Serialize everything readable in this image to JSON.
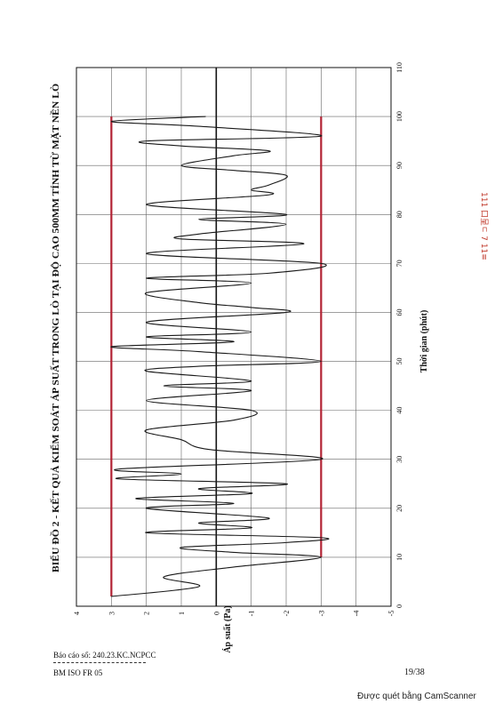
{
  "chart_data": {
    "type": "line",
    "title": "BIỂU ĐỒ 2 - KẾT QUẢ KIỂM SOÁT ÁP SUẤT TRONG  LÒ TẠI ĐỘ CAO 500MM TÍNH TỪ MẶT NỀN LÒ",
    "xlabel": "Thời gian (phút)",
    "ylabel": "Áp suất (Pa)",
    "xlim": [
      0,
      110
    ],
    "ylim": [
      -5,
      4
    ],
    "x_ticks": [
      "0",
      "10",
      "20",
      "30",
      "40",
      "50",
      "60",
      "70",
      "80",
      "90",
      "100",
      "110"
    ],
    "y_ticks": [
      "4",
      "3",
      "2",
      "1",
      "0",
      "-1",
      "-2",
      "-3",
      "-4",
      "-5"
    ],
    "grid": true,
    "limits": [
      {
        "y": 3,
        "x_start": 2,
        "x_end": 100,
        "color": "#b22234"
      },
      {
        "y": -3,
        "x_start": 10,
        "x_end": 100,
        "color": "#b22234"
      }
    ],
    "series": [
      {
        "color": "#1a1a1a",
        "x": [
          2,
          4,
          6,
          8,
          10,
          11,
          12,
          13,
          14,
          15,
          16,
          17,
          18,
          20,
          21,
          22,
          23,
          24,
          25,
          26,
          27,
          28,
          30,
          32,
          34,
          36,
          38,
          40,
          42,
          44,
          45,
          46,
          48,
          49,
          50,
          52,
          53,
          54,
          55,
          56,
          58,
          60,
          61,
          62,
          64,
          66,
          67,
          68,
          70,
          72,
          74,
          75,
          76,
          78,
          79,
          80,
          82,
          84,
          85,
          86,
          88,
          89,
          90,
          92,
          93,
          94,
          95,
          96,
          98,
          99,
          100
        ],
        "y": [
          3,
          0.5,
          1.5,
          -0.5,
          -3,
          -0.5,
          1,
          -2,
          -3,
          2,
          -1,
          0.5,
          -1.5,
          2,
          -0.5,
          2.3,
          -1,
          0.5,
          -2,
          2.8,
          1,
          2.8,
          -3,
          0.2,
          1,
          2,
          -0.5,
          -1,
          2,
          -1,
          1.5,
          -1,
          2,
          0.5,
          -3,
          0.5,
          3,
          -0.5,
          2,
          -1,
          2,
          -2,
          -1,
          0.5,
          2,
          -1,
          2,
          -1.5,
          -3,
          2,
          -2.5,
          1,
          0.5,
          -2,
          0.5,
          -2,
          2,
          -1.5,
          -1,
          -1.5,
          -2,
          -0.5,
          1,
          -0.5,
          -1.5,
          1,
          2,
          -3,
          0.5,
          3,
          0.3
        ]
      }
    ]
  },
  "stamp": {
    "text": "111 口呈ㄷ 7 11≡"
  },
  "footer": {
    "report_no": "Báo cáo số: 240.23.KC.NCPCC",
    "form": "BM ISO FR 05",
    "page": "19/38",
    "scanner": "Được quét bằng CamScanner"
  }
}
